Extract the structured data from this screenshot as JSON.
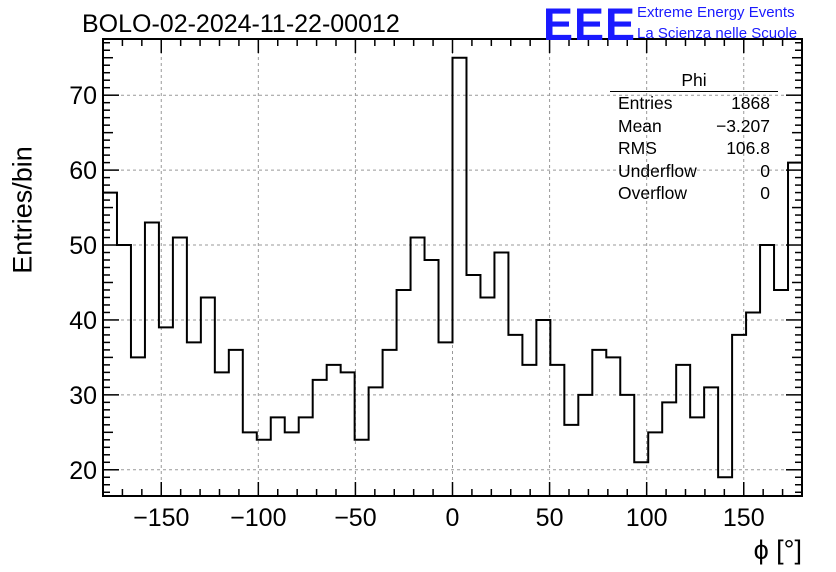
{
  "title": "BOLO-02-2024-11-22-00012",
  "logo": {
    "mark": "EEE",
    "line1": "Extreme Energy Events",
    "line2": "La Scienza nelle Scuole",
    "color": "#1a1aff"
  },
  "stats_box": {
    "title": "Phi",
    "rows": [
      {
        "label": "Entries",
        "value": "1868"
      },
      {
        "label": "Mean",
        "value": "−3.207"
      },
      {
        "label": "RMS",
        "value": "106.8"
      },
      {
        "label": "Underflow",
        "value": "0"
      },
      {
        "label": "Overflow",
        "value": "0"
      }
    ]
  },
  "chart_data": {
    "type": "histogram",
    "xlabel": "ϕ [°]",
    "ylabel": "Entries/bin",
    "xlim": [
      -180,
      180
    ],
    "ylim": [
      16.5,
      77.5
    ],
    "xticks": [
      -150,
      -100,
      -50,
      0,
      50,
      100,
      150
    ],
    "yticks": [
      20,
      30,
      40,
      50,
      60,
      70
    ],
    "bin_width": 7.2,
    "grid": true,
    "line_color": "#000000",
    "values": [
      57,
      50,
      35,
      53,
      39,
      51,
      37,
      43,
      33,
      36,
      25,
      24,
      27,
      25,
      27,
      32,
      34,
      33,
      24,
      31,
      36,
      44,
      51,
      48,
      37,
      75,
      46,
      43,
      49,
      38,
      34,
      40,
      34,
      26,
      30,
      36,
      35,
      30,
      21,
      25,
      29,
      34,
      27,
      31,
      19,
      38,
      41,
      50,
      44,
      61
    ]
  }
}
